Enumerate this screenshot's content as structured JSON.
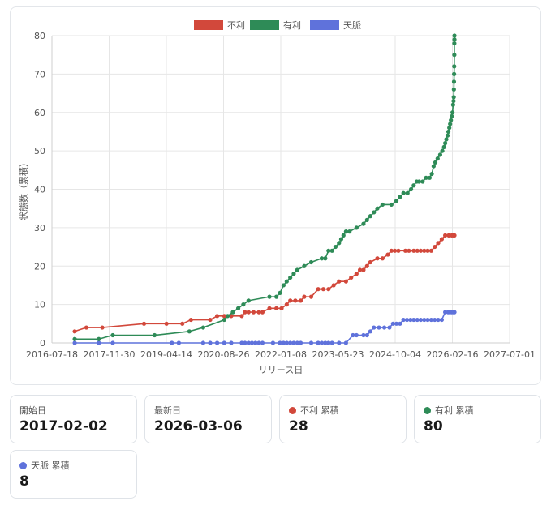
{
  "colors": {
    "furi": "#d2483b",
    "yuri": "#2e8b57",
    "tenmyaku": "#5f72db"
  },
  "chart_data": {
    "type": "line",
    "title": "",
    "xlabel": "リリース日",
    "ylabel": "状態数（累積）",
    "x_type": "date",
    "xlim": [
      "2016-07-18",
      "2027-07-01"
    ],
    "ylim": [
      0,
      80
    ],
    "x_ticks": [
      "2016-07-18",
      "2017-11-30",
      "2019-04-14",
      "2020-08-26",
      "2022-01-08",
      "2023-05-23",
      "2024-10-04",
      "2026-02-16",
      "2027-07-01"
    ],
    "y_ticks": [
      0,
      10,
      20,
      30,
      40,
      50,
      60,
      70,
      80
    ],
    "grid": true,
    "legend": "top-center",
    "series": [
      {
        "name": "不利",
        "points": [
          [
            "2017-02-02",
            3
          ],
          [
            "2017-05-15",
            4
          ],
          [
            "2017-10-01",
            4
          ],
          [
            "2018-10-01",
            5
          ],
          [
            "2019-04-15",
            5
          ],
          [
            "2019-09-01",
            5
          ],
          [
            "2019-11-15",
            6
          ],
          [
            "2020-05-01",
            6
          ],
          [
            "2020-07-01",
            7
          ],
          [
            "2020-09-01",
            7
          ],
          [
            "2020-11-01",
            7
          ],
          [
            "2021-02-01",
            7
          ],
          [
            "2021-03-01",
            8
          ],
          [
            "2021-04-01",
            8
          ],
          [
            "2021-05-15",
            8
          ],
          [
            "2021-07-01",
            8
          ],
          [
            "2021-08-01",
            8
          ],
          [
            "2021-10-01",
            9
          ],
          [
            "2021-12-01",
            9
          ],
          [
            "2022-01-15",
            9
          ],
          [
            "2022-03-01",
            10
          ],
          [
            "2022-04-01",
            11
          ],
          [
            "2022-05-15",
            11
          ],
          [
            "2022-07-01",
            11
          ],
          [
            "2022-08-01",
            12
          ],
          [
            "2022-10-01",
            12
          ],
          [
            "2022-12-01",
            14
          ],
          [
            "2023-01-15",
            14
          ],
          [
            "2023-03-01",
            14
          ],
          [
            "2023-04-15",
            15
          ],
          [
            "2023-06-01",
            16
          ],
          [
            "2023-08-01",
            16
          ],
          [
            "2023-09-15",
            17
          ],
          [
            "2023-11-01",
            18
          ],
          [
            "2023-12-01",
            19
          ],
          [
            "2024-01-01",
            19
          ],
          [
            "2024-02-01",
            20
          ],
          [
            "2024-03-01",
            21
          ],
          [
            "2024-05-01",
            22
          ],
          [
            "2024-06-15",
            22
          ],
          [
            "2024-08-01",
            23
          ],
          [
            "2024-09-01",
            24
          ],
          [
            "2024-10-01",
            24
          ],
          [
            "2024-11-01",
            24
          ],
          [
            "2025-01-01",
            24
          ],
          [
            "2025-02-01",
            24
          ],
          [
            "2025-03-15",
            24
          ],
          [
            "2025-04-15",
            24
          ],
          [
            "2025-05-15",
            24
          ],
          [
            "2025-06-15",
            24
          ],
          [
            "2025-07-15",
            24
          ],
          [
            "2025-08-15",
            24
          ],
          [
            "2025-09-15",
            25
          ],
          [
            "2025-10-15",
            26
          ],
          [
            "2025-11-15",
            27
          ],
          [
            "2025-12-15",
            28
          ],
          [
            "2026-01-15",
            28
          ],
          [
            "2026-02-10",
            28
          ],
          [
            "2026-02-25",
            28
          ],
          [
            "2026-03-06",
            28
          ]
        ]
      },
      {
        "name": "有利",
        "points": [
          [
            "2017-02-02",
            1
          ],
          [
            "2017-09-01",
            1
          ],
          [
            "2018-01-01",
            2
          ],
          [
            "2019-01-01",
            2
          ],
          [
            "2019-11-01",
            3
          ],
          [
            "2020-03-01",
            4
          ],
          [
            "2020-09-01",
            6
          ],
          [
            "2020-10-01",
            7
          ],
          [
            "2020-11-15",
            8
          ],
          [
            "2021-01-01",
            9
          ],
          [
            "2021-02-15",
            10
          ],
          [
            "2021-04-01",
            11
          ],
          [
            "2021-10-01",
            12
          ],
          [
            "2021-12-01",
            12
          ],
          [
            "2022-01-01",
            13
          ],
          [
            "2022-02-01",
            15
          ],
          [
            "2022-03-01",
            16
          ],
          [
            "2022-04-01",
            17
          ],
          [
            "2022-05-01",
            18
          ],
          [
            "2022-06-01",
            19
          ],
          [
            "2022-08-01",
            20
          ],
          [
            "2022-10-01",
            21
          ],
          [
            "2023-01-01",
            22
          ],
          [
            "2023-02-01",
            22
          ],
          [
            "2023-03-01",
            24
          ],
          [
            "2023-04-01",
            24
          ],
          [
            "2023-05-01",
            25
          ],
          [
            "2023-06-01",
            26
          ],
          [
            "2023-06-20",
            27
          ],
          [
            "2023-07-10",
            28
          ],
          [
            "2023-08-01",
            29
          ],
          [
            "2023-09-01",
            29
          ],
          [
            "2023-11-01",
            30
          ],
          [
            "2024-01-01",
            31
          ],
          [
            "2024-02-01",
            32
          ],
          [
            "2024-03-01",
            33
          ],
          [
            "2024-04-01",
            34
          ],
          [
            "2024-05-01",
            35
          ],
          [
            "2024-06-15",
            36
          ],
          [
            "2024-09-01",
            36
          ],
          [
            "2024-10-15",
            37
          ],
          [
            "2024-11-15",
            38
          ],
          [
            "2024-12-15",
            39
          ],
          [
            "2025-01-20",
            39
          ],
          [
            "2025-02-20",
            40
          ],
          [
            "2025-03-15",
            41
          ],
          [
            "2025-04-10",
            42
          ],
          [
            "2025-05-01",
            42
          ],
          [
            "2025-06-01",
            42
          ],
          [
            "2025-07-01",
            43
          ],
          [
            "2025-08-01",
            43
          ],
          [
            "2025-08-20",
            44
          ],
          [
            "2025-09-05",
            46
          ],
          [
            "2025-09-20",
            47
          ],
          [
            "2025-10-10",
            48
          ],
          [
            "2025-11-01",
            49
          ],
          [
            "2025-11-20",
            50
          ],
          [
            "2025-12-05",
            51
          ],
          [
            "2025-12-15",
            52
          ],
          [
            "2025-12-25",
            53
          ],
          [
            "2026-01-05",
            54
          ],
          [
            "2026-01-12",
            55
          ],
          [
            "2026-01-20",
            56
          ],
          [
            "2026-01-27",
            57
          ],
          [
            "2026-02-03",
            58
          ],
          [
            "2026-02-10",
            59
          ],
          [
            "2026-02-17",
            60
          ],
          [
            "2026-02-22",
            62
          ],
          [
            "2026-02-26",
            63
          ],
          [
            "2026-02-28",
            64
          ],
          [
            "2026-03-01",
            66
          ],
          [
            "2026-03-02",
            68
          ],
          [
            "2026-03-03",
            70
          ],
          [
            "2026-03-04",
            72
          ],
          [
            "2026-03-05",
            75
          ],
          [
            "2026-03-05",
            78
          ],
          [
            "2026-03-06",
            79
          ],
          [
            "2026-03-06",
            80
          ]
        ]
      },
      {
        "name": "天脈",
        "points": [
          [
            "2017-02-02",
            0
          ],
          [
            "2017-09-01",
            0
          ],
          [
            "2018-01-01",
            0
          ],
          [
            "2019-06-01",
            0
          ],
          [
            "2019-08-01",
            0
          ],
          [
            "2020-03-01",
            0
          ],
          [
            "2020-05-01",
            0
          ],
          [
            "2020-07-01",
            0
          ],
          [
            "2020-09-01",
            0
          ],
          [
            "2020-11-01",
            0
          ],
          [
            "2021-02-01",
            0
          ],
          [
            "2021-03-01",
            0
          ],
          [
            "2021-04-01",
            0
          ],
          [
            "2021-05-01",
            0
          ],
          [
            "2021-06-01",
            0
          ],
          [
            "2021-07-01",
            0
          ],
          [
            "2021-08-01",
            0
          ],
          [
            "2021-11-01",
            0
          ],
          [
            "2022-01-01",
            0
          ],
          [
            "2022-02-01",
            0
          ],
          [
            "2022-03-01",
            0
          ],
          [
            "2022-04-01",
            0
          ],
          [
            "2022-05-01",
            0
          ],
          [
            "2022-06-01",
            0
          ],
          [
            "2022-07-01",
            0
          ],
          [
            "2022-10-01",
            0
          ],
          [
            "2022-12-01",
            0
          ],
          [
            "2023-01-01",
            0
          ],
          [
            "2023-02-01",
            0
          ],
          [
            "2023-03-01",
            0
          ],
          [
            "2023-04-01",
            0
          ],
          [
            "2023-06-01",
            0
          ],
          [
            "2023-08-01",
            0
          ],
          [
            "2023-10-01",
            2
          ],
          [
            "2023-11-01",
            2
          ],
          [
            "2024-01-01",
            2
          ],
          [
            "2024-02-01",
            2
          ],
          [
            "2024-03-01",
            3
          ],
          [
            "2024-04-01",
            4
          ],
          [
            "2024-05-15",
            4
          ],
          [
            "2024-07-01",
            4
          ],
          [
            "2024-08-15",
            4
          ],
          [
            "2024-09-15",
            5
          ],
          [
            "2024-10-15",
            5
          ],
          [
            "2024-11-15",
            5
          ],
          [
            "2024-12-15",
            6
          ],
          [
            "2025-01-15",
            6
          ],
          [
            "2025-02-15",
            6
          ],
          [
            "2025-03-15",
            6
          ],
          [
            "2025-04-15",
            6
          ],
          [
            "2025-05-15",
            6
          ],
          [
            "2025-06-15",
            6
          ],
          [
            "2025-07-15",
            6
          ],
          [
            "2025-08-15",
            6
          ],
          [
            "2025-09-15",
            6
          ],
          [
            "2025-10-15",
            6
          ],
          [
            "2025-11-15",
            6
          ],
          [
            "2025-12-15",
            8
          ],
          [
            "2026-01-10",
            8
          ],
          [
            "2026-01-25",
            8
          ],
          [
            "2026-02-10",
            8
          ],
          [
            "2026-02-25",
            8
          ],
          [
            "2026-03-06",
            8
          ]
        ]
      }
    ]
  },
  "stats": [
    {
      "label": "開始日",
      "value": "2017-02-02",
      "color": ""
    },
    {
      "label": "最新日",
      "value": "2026-03-06",
      "color": ""
    },
    {
      "label": "不利 累積",
      "value": "28",
      "color": "#d2483b"
    },
    {
      "label": "有利 累積",
      "value": "80",
      "color": "#2e8b57"
    },
    {
      "label": "天脈 累積",
      "value": "8",
      "color": "#5f72db"
    }
  ]
}
